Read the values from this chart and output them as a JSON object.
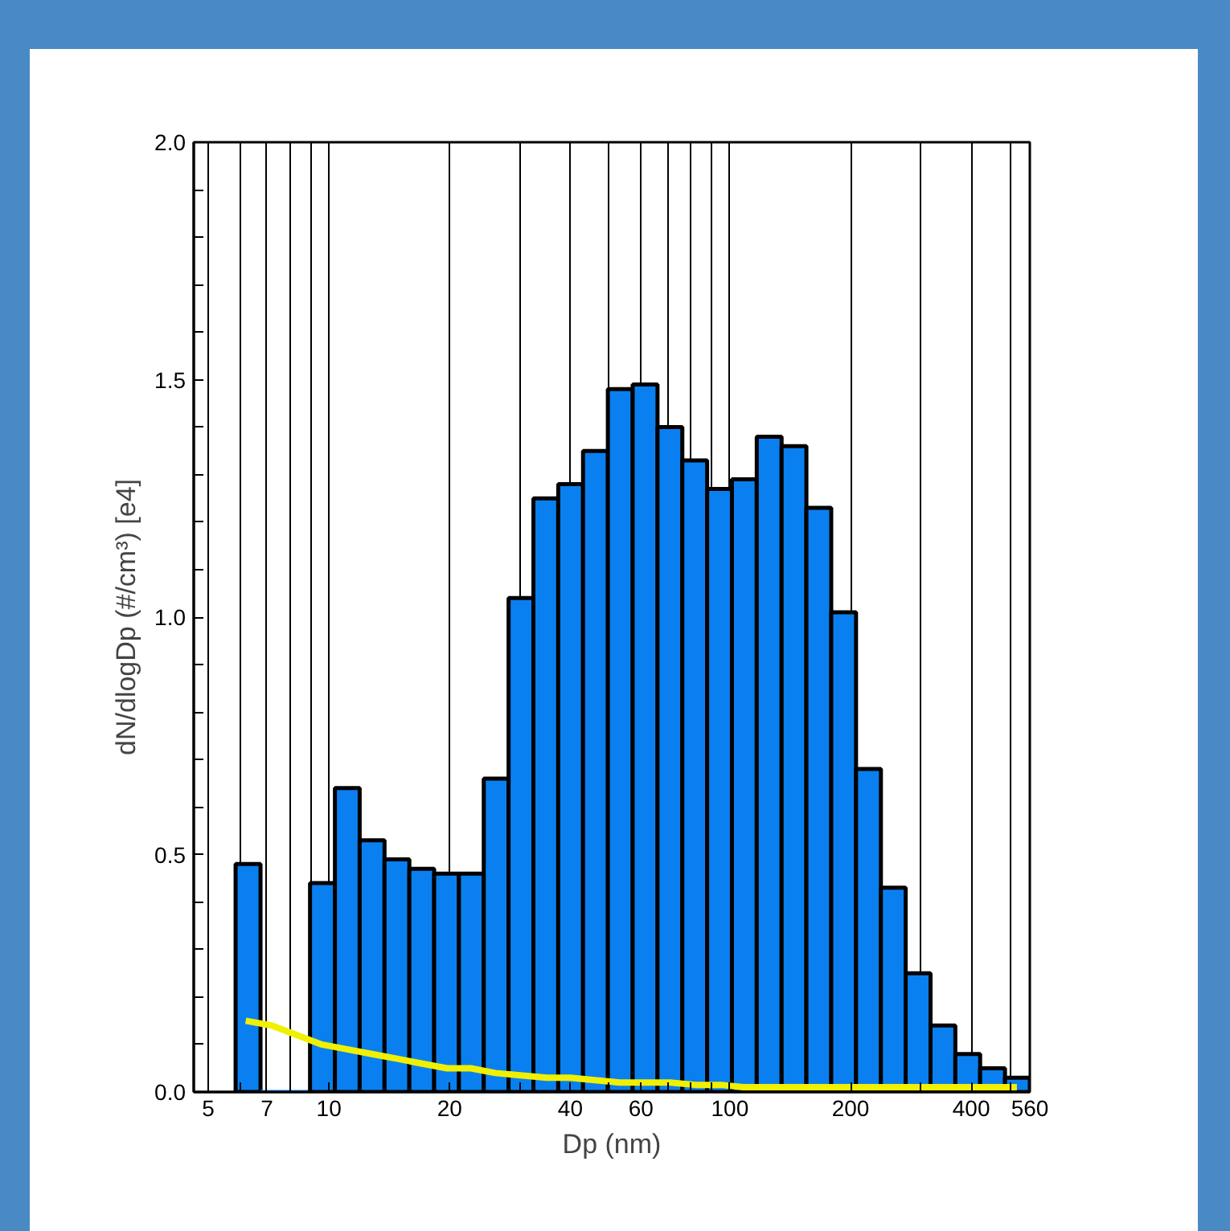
{
  "chart_data": {
    "type": "histogram",
    "xlabel": "Dp (nm)",
    "ylabel": "dN/dlogDp (#/cm³) [e4]",
    "log": "x",
    "grid": "x",
    "marker": "none",
    "line_style": "solid",
    "xlim": [
      4.6,
      560
    ],
    "ylim": [
      0,
      2
    ],
    "xticks": [
      5,
      {
        "value": 6,
        "label": null
      },
      7,
      {
        "value": 8,
        "label": null
      },
      {
        "value": 9,
        "label": null
      },
      10,
      20,
      {
        "value": 30,
        "label": null
      },
      40,
      {
        "value": 50,
        "label": null
      },
      60,
      {
        "value": 70,
        "label": null
      },
      {
        "value": 80,
        "label": null
      },
      {
        "value": 90,
        "label": null
      },
      100,
      200,
      {
        "value": 300,
        "label": null
      },
      400,
      {
        "value": 500,
        "label": null
      },
      560
    ],
    "yticks": [
      {
        "value": 0,
        "label": "0.0"
      },
      {
        "value": 0.1,
        "label": null
      },
      {
        "value": 0.2,
        "label": null
      },
      {
        "value": 0.3,
        "label": null
      },
      {
        "value": 0.4,
        "label": null
      },
      {
        "value": 0.5,
        "label": "0.5"
      },
      {
        "value": 0.6,
        "label": null
      },
      {
        "value": 0.7,
        "label": null
      },
      {
        "value": 0.8,
        "label": null
      },
      {
        "value": 0.9,
        "label": null
      },
      {
        "value": 1.0,
        "label": "1.0"
      },
      {
        "value": 1.1,
        "label": null
      },
      {
        "value": 1.2,
        "label": null
      },
      {
        "value": 1.3,
        "label": null
      },
      {
        "value": 1.4,
        "label": null
      },
      {
        "value": 1.5,
        "label": "1.5"
      },
      {
        "value": 1.6,
        "label": null
      },
      {
        "value": 1.7,
        "label": null
      },
      {
        "value": 1.8,
        "label": null
      },
      {
        "value": 1.9,
        "label": null
      },
      {
        "value": 2.0,
        "label": "2.0"
      }
    ],
    "bins": [
      5.85,
      6.75,
      7.78,
      8.97,
      10.35,
      11.93,
      13.76,
      15.87,
      18.3,
      21.1,
      24.33,
      28.06,
      32.36,
      37.32,
      43.03,
      49.63,
      57.23,
      66.0,
      76.11,
      87.77,
      101.2,
      116.7,
      134.6,
      155.2,
      179.0,
      206.4,
      238.1,
      274.5,
      316.6,
      365.1,
      421.0,
      485.6,
      560
    ],
    "series": [
      {
        "color": "#0a80f0",
        "values": [
          0.48,
          0,
          0,
          0.44,
          0.64,
          0.53,
          0.49,
          0.47,
          0.46,
          0.46,
          0.66,
          1.04,
          1.25,
          1.28,
          1.35,
          1.48,
          1.49,
          1.4,
          1.33,
          1.27,
          1.29,
          1.38,
          1.36,
          1.23,
          1.01,
          0.68,
          0.43,
          0.25,
          0.14,
          0.08,
          0.05,
          0.03
        ]
      },
      {
        "type": "line",
        "color": "#f0f000",
        "x": [
          6.2,
          7.2,
          8.3,
          9.6,
          11.1,
          12.8,
          14.8,
          17,
          19.7,
          22.6,
          26,
          30,
          35,
          40,
          46,
          53,
          61,
          71,
          82,
          95,
          108,
          125,
          145,
          167,
          192,
          222,
          256,
          295,
          340,
          392,
          452,
          520
        ],
        "values": [
          0.15,
          0.14,
          0.12,
          0.1,
          0.09,
          0.08,
          0.07,
          0.06,
          0.05,
          0.05,
          0.04,
          0.035,
          0.03,
          0.03,
          0.025,
          0.02,
          0.02,
          0.02,
          0.015,
          0.015,
          0.01,
          0.01,
          0.01,
          0.01,
          0.01,
          0.01,
          0.01,
          0.01,
          0.01,
          0.01,
          0.01,
          0.01
        ]
      }
    ]
  }
}
